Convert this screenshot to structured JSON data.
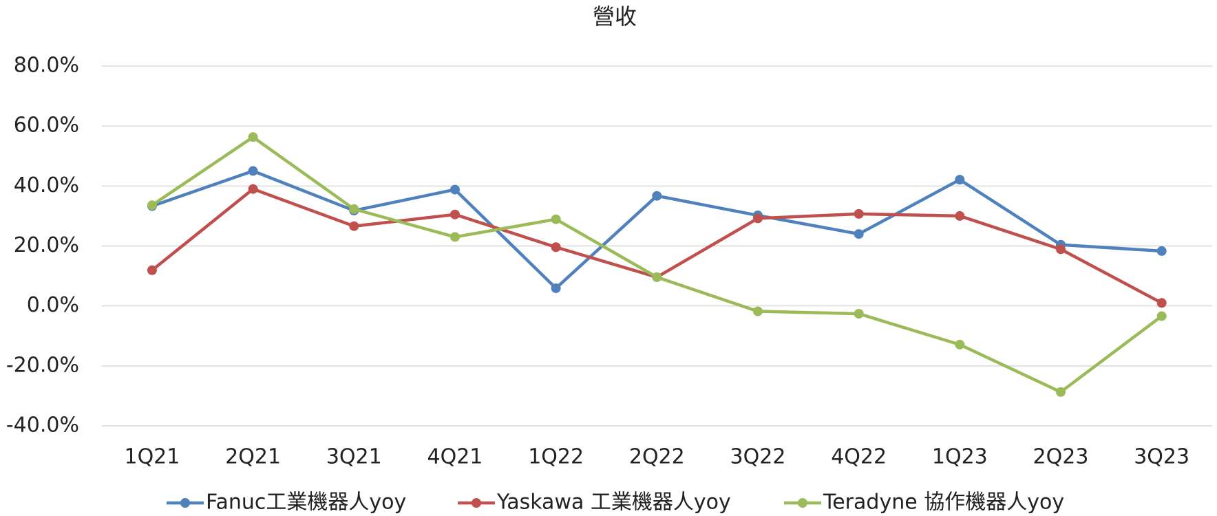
{
  "chart_data": {
    "type": "line",
    "title": "營收",
    "categories": [
      "1Q21",
      "2Q21",
      "3Q21",
      "4Q21",
      "1Q22",
      "2Q22",
      "3Q22",
      "4Q22",
      "1Q23",
      "2Q23",
      "3Q23"
    ],
    "series": [
      {
        "name": "Fanuc工業機器人yoy",
        "color": "#4f81bd",
        "values": [
          33.3,
          45.0,
          31.8,
          38.8,
          5.9,
          36.7,
          30.2,
          24.0,
          42.1,
          20.4,
          18.3
        ]
      },
      {
        "name": "Yaskawa 工業機器人yoy",
        "color": "#c0504d",
        "values": [
          11.9,
          39.0,
          26.6,
          30.5,
          19.6,
          9.6,
          29.2,
          30.7,
          30.0,
          18.9,
          1.0
        ]
      },
      {
        "name": "Teradyne 協作機器人yoy",
        "color": "#9bbb59",
        "values": [
          33.6,
          56.3,
          32.3,
          23.0,
          28.9,
          9.6,
          -1.8,
          -2.6,
          -12.9,
          -28.7,
          -3.4
        ]
      }
    ],
    "ylim": [
      -40,
      80
    ],
    "yticks": [
      {
        "value": -40,
        "label": "-40.0%"
      },
      {
        "value": -20,
        "label": "-20.0%"
      },
      {
        "value": 0,
        "label": "0.0%"
      },
      {
        "value": 20,
        "label": "20.0%"
      },
      {
        "value": 40,
        "label": "40.0%"
      },
      {
        "value": 60,
        "label": "60.0%"
      },
      {
        "value": 80,
        "label": "80.0%"
      }
    ],
    "grid": true,
    "legend": "bottom"
  }
}
